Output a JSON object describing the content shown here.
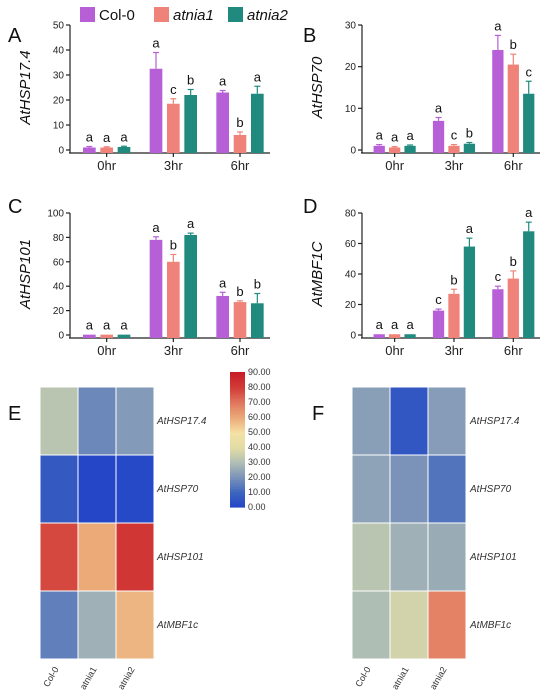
{
  "legend": {
    "series": [
      {
        "name": "Col-0",
        "color": "#b65fd6",
        "italic": false
      },
      {
        "name": "atnia1",
        "color": "#f08379",
        "italic": true
      },
      {
        "name": "atnia2",
        "color": "#1f8a7d",
        "italic": true
      }
    ]
  },
  "chart_data": [
    {
      "panel": "A",
      "type": "bar",
      "ylabel": "AtHSP17.4",
      "categories": [
        "0hr",
        "3hr",
        "6hr"
      ],
      "ylim": [
        0,
        50
      ],
      "yticks": [
        0,
        10,
        20,
        30,
        40,
        50
      ],
      "series": [
        {
          "name": "Col-0",
          "values": [
            1,
            32.5,
            23
          ],
          "errors": [
            0.4,
            6.5,
            0.8
          ],
          "letters": [
            "a",
            "a",
            "a"
          ]
        },
        {
          "name": "atnia1",
          "values": [
            1,
            18.5,
            6
          ],
          "errors": [
            0.3,
            2.0,
            1.2
          ],
          "letters": [
            "a",
            "c",
            "b"
          ]
        },
        {
          "name": "atnia2",
          "values": [
            1.2,
            22,
            22.5
          ],
          "errors": [
            0.3,
            2.2,
            3.0
          ],
          "letters": [
            "a",
            "b",
            "a"
          ]
        }
      ]
    },
    {
      "panel": "B",
      "type": "bar",
      "ylabel": "AtHSP70",
      "categories": [
        "0hr",
        "3hr",
        "6hr"
      ],
      "ylim": [
        0,
        30
      ],
      "yticks": [
        0,
        10,
        20,
        30
      ],
      "series": [
        {
          "name": "Col-0",
          "values": [
            1,
            7,
            24
          ],
          "errors": [
            0.3,
            0.8,
            3.5
          ],
          "letters": [
            "a",
            "a",
            "a"
          ]
        },
        {
          "name": "atnia1",
          "values": [
            0.6,
            1,
            20.5
          ],
          "errors": [
            0.2,
            0.3,
            2.5
          ],
          "letters": [
            "a",
            "c",
            "b"
          ]
        },
        {
          "name": "atnia2",
          "values": [
            1,
            1.5,
            13.5
          ],
          "errors": [
            0.2,
            0.3,
            3.0
          ],
          "letters": [
            "a",
            "b",
            "c"
          ]
        }
      ]
    },
    {
      "panel": "C",
      "type": "bar",
      "ylabel": "AtHSP101",
      "categories": [
        "0hr",
        "3hr",
        "6hr"
      ],
      "ylim": [
        0,
        100
      ],
      "yticks": [
        0,
        20,
        40,
        60,
        80,
        100
      ],
      "series": [
        {
          "name": "Col-0",
          "values": [
            0.3,
            78,
            32
          ],
          "errors": [
            0,
            2.5,
            3.0
          ],
          "letters": [
            "a",
            "a",
            "a"
          ]
        },
        {
          "name": "atnia1",
          "values": [
            0.3,
            60,
            27
          ],
          "errors": [
            0,
            6.0,
            1.0
          ],
          "letters": [
            "a",
            "b",
            "b"
          ]
        },
        {
          "name": "atnia2",
          "values": [
            0.3,
            82,
            26
          ],
          "errors": [
            0,
            1.5,
            8.0
          ],
          "letters": [
            "a",
            "a",
            "b"
          ]
        }
      ]
    },
    {
      "panel": "D",
      "type": "bar",
      "ylabel": "AtMBF1C",
      "categories": [
        "0hr",
        "3hr",
        "6hr"
      ],
      "ylim": [
        0,
        80
      ],
      "yticks": [
        0,
        20,
        40,
        60,
        80
      ],
      "series": [
        {
          "name": "Col-0",
          "values": [
            0.5,
            16,
            30
          ],
          "errors": [
            0,
            1.0,
            2.0
          ],
          "letters": [
            "a",
            "c",
            "c"
          ]
        },
        {
          "name": "atnia1",
          "values": [
            0.5,
            27,
            37
          ],
          "errors": [
            0,
            3.0,
            5.0
          ],
          "letters": [
            "a",
            "b",
            "b"
          ]
        },
        {
          "name": "atnia2",
          "values": [
            0.5,
            58,
            68
          ],
          "errors": [
            0,
            5.5,
            6.0
          ],
          "letters": [
            "a",
            "a",
            "a"
          ]
        }
      ]
    },
    {
      "panel": "E",
      "type": "heatmap",
      "rows": [
        "AtHSP17.4",
        "AtHSP70",
        "AtHSP101",
        "AtMBF1c"
      ],
      "columns": [
        "Col-0",
        "atnia1",
        "atnia2"
      ],
      "values": [
        [
          32,
          18,
          22
        ],
        [
          7,
          1,
          1.5
        ],
        [
          78,
          60,
          82
        ],
        [
          16,
          27,
          58
        ]
      ],
      "colorbar": {
        "min": 0,
        "max": 90,
        "ticks": [
          "90.00",
          "80.00",
          "70.00",
          "60.00",
          "50.00",
          "40.00",
          "30.00",
          "20.00",
          "10.00",
          "0.00"
        ]
      }
    },
    {
      "panel": "F",
      "type": "heatmap",
      "rows": [
        "AtHSP17.4",
        "AtHSP70",
        "AtHSP101",
        "AtMBF1c"
      ],
      "columns": [
        "Col-0",
        "atnia1",
        "atnia2"
      ],
      "values": [
        [
          23,
          6,
          22.5
        ],
        [
          24,
          20.5,
          13.5
        ],
        [
          32,
          27,
          26
        ],
        [
          30,
          37,
          68
        ]
      ]
    }
  ]
}
